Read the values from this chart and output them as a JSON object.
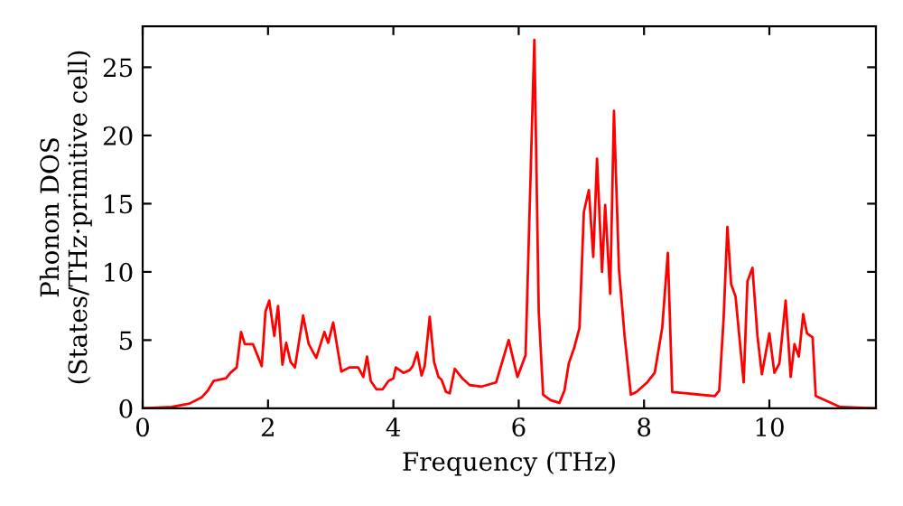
{
  "chart_data": {
    "type": "line",
    "xlabel": "Frequency (THz)",
    "ylabel": "Phonon DOS\n(States/THz·primitive cell)",
    "xlim": [
      0,
      11.7
    ],
    "ylim": [
      0,
      28
    ],
    "xticks": [
      0,
      2,
      4,
      6,
      8,
      10
    ],
    "yticks": [
      0,
      5,
      10,
      15,
      20,
      25
    ],
    "grid": false,
    "legend": false,
    "marker": "none",
    "line_style": "solid",
    "series": [
      {
        "color": "#ff0000",
        "x": [
          0,
          0.46,
          0.75,
          0.94,
          1.04,
          1.13,
          1.33,
          1.4,
          1.5,
          1.57,
          1.63,
          1.76,
          1.9,
          1.96,
          2.02,
          2.1,
          2.16,
          2.23,
          2.29,
          2.36,
          2.43,
          2.56,
          2.65,
          2.77,
          2.9,
          2.96,
          3.04,
          3.17,
          3.3,
          3.44,
          3.52,
          3.58,
          3.64,
          3.73,
          3.83,
          3.92,
          4.0,
          4.04,
          4.16,
          4.26,
          4.31,
          4.38,
          4.45,
          4.5,
          4.58,
          4.65,
          4.72,
          4.77,
          4.84,
          4.9,
          4.98,
          5.1,
          5.22,
          5.41,
          5.64,
          5.84,
          5.98,
          6.11,
          6.25,
          6.32,
          6.39,
          6.51,
          6.65,
          6.73,
          6.8,
          6.89,
          6.97,
          7.04,
          7.12,
          7.19,
          7.25,
          7.33,
          7.38,
          7.46,
          7.52,
          7.6,
          7.69,
          7.79,
          7.88,
          8.05,
          8.17,
          8.29,
          8.38,
          8.45,
          9.13,
          9.2,
          9.27,
          9.33,
          9.39,
          9.46,
          9.59,
          9.65,
          9.73,
          9.81,
          9.88,
          10.0,
          10.08,
          10.16,
          10.26,
          10.34,
          10.4,
          10.47,
          10.54,
          10.6,
          10.69,
          10.74,
          11.13,
          11.7
        ],
        "values": [
          0,
          0.1,
          0.35,
          0.8,
          1.3,
          2.0,
          2.2,
          2.6,
          3.0,
          5.6,
          4.7,
          4.7,
          3.1,
          7.1,
          7.9,
          5.3,
          7.5,
          3.2,
          4.8,
          3.4,
          3.0,
          6.8,
          4.7,
          3.7,
          5.6,
          4.8,
          6.3,
          2.7,
          3.0,
          3.0,
          2.3,
          3.8,
          2.0,
          1.4,
          1.4,
          2.0,
          2.2,
          3.0,
          2.6,
          2.8,
          3.1,
          4.1,
          2.4,
          3.1,
          6.7,
          3.4,
          2.3,
          2.1,
          1.2,
          1.1,
          2.9,
          2.2,
          1.7,
          1.6,
          1.9,
          5.0,
          2.3,
          3.9,
          27.0,
          7.1,
          1.0,
          0.6,
          0.4,
          1.3,
          3.3,
          4.5,
          5.9,
          14.4,
          16.0,
          11.1,
          18.3,
          10.0,
          14.9,
          8.4,
          21.8,
          10.2,
          5.3,
          1.0,
          1.2,
          1.9,
          2.6,
          5.9,
          11.4,
          1.2,
          0.9,
          1.3,
          6.6,
          13.3,
          9.1,
          8.2,
          1.9,
          9.3,
          10.3,
          5.3,
          2.5,
          5.5,
          2.6,
          3.3,
          7.9,
          2.3,
          4.7,
          3.8,
          6.9,
          5.5,
          5.2,
          0.9,
          0.1,
          0
        ]
      }
    ]
  }
}
